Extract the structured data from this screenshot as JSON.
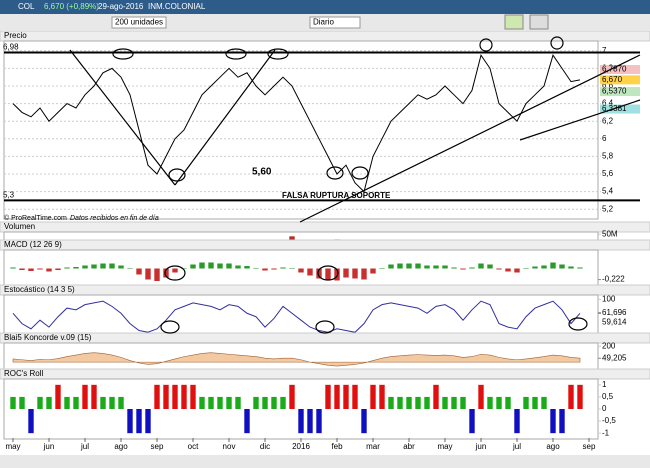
{
  "toolbar": {
    "symbol": "COL",
    "quote": "6,670 (+0,89%)",
    "date": "29-ago-2016",
    "name": "INM.COLONIAL",
    "units": "200 unidades",
    "period": "Diario"
  },
  "chart_data": [
    {
      "type": "line",
      "title": "Precio",
      "color": "#000000",
      "values": [
        6.4,
        6.3,
        6.25,
        6.35,
        6.2,
        6.3,
        6.4,
        6.35,
        6.5,
        6.6,
        6.75,
        6.8,
        6.7,
        6.5,
        6.1,
        5.7,
        5.6,
        5.8,
        6.0,
        6.1,
        6.3,
        6.5,
        6.6,
        6.7,
        6.8,
        6.7,
        6.75,
        6.6,
        6.5,
        6.6,
        6.7,
        6.6,
        6.4,
        6.2,
        6.0,
        5.8,
        5.6,
        5.7,
        5.5,
        5.4,
        5.8,
        6.0,
        6.2,
        6.3,
        6.4,
        6.5,
        6.45,
        6.5,
        6.6,
        6.5,
        6.4,
        6.55,
        6.95,
        6.8,
        6.4,
        6.3,
        6.2,
        6.4,
        6.5,
        6.6,
        6.95,
        6.8,
        6.65,
        6.67
      ],
      "ylim": [
        5.1,
        7.1
      ],
      "yticks": [
        7,
        {
          "value": 6.8,
          "label": "6,8"
        },
        {
          "value": 6.6,
          "label": "6,6"
        },
        {
          "value": 6.4,
          "label": "6,4"
        },
        {
          "value": 6.2,
          "label": "6,2"
        },
        6,
        {
          "value": 5.8,
          "label": "5,8"
        },
        {
          "value": 5.6,
          "label": "5,6"
        },
        {
          "value": 5.4,
          "label": "5,4"
        },
        {
          "value": 5.2,
          "label": "5,2"
        }
      ],
      "hlines": [
        {
          "value": 6.98,
          "label": "6,98"
        },
        {
          "value": 5.3,
          "label": "5,3"
        }
      ],
      "price_labels": [
        {
          "value": 6.787,
          "label": "6,7870",
          "color": "#f4c0c0"
        },
        {
          "value": 6.67,
          "label": "6,670",
          "color": "#ffd24a"
        },
        {
          "value": 6.537,
          "label": "6,5370",
          "color": "#bfe6bf"
        },
        {
          "value": 6.3381,
          "label": "6,3381",
          "color": "#9fe0e0"
        }
      ],
      "annotations": [
        "5,60",
        "FALSA RUPTURA SOPORTE",
        "© ProRealTime.com",
        "Datos recibidos en fin de día"
      ],
      "grid": true
    },
    {
      "type": "bar",
      "title": "Volumen",
      "color": "#b03030",
      "values": [
        5,
        4,
        4,
        6,
        5,
        4,
        6,
        7,
        8,
        6,
        5,
        6,
        9,
        10,
        8,
        7,
        7,
        6,
        6,
        5,
        5,
        6,
        5,
        5,
        5,
        4,
        6,
        5,
        6,
        7,
        5,
        35,
        8,
        7,
        9,
        10,
        12,
        9,
        8,
        7,
        6,
        6,
        5,
        5,
        6,
        5,
        7,
        8,
        9,
        7,
        6,
        6,
        7,
        6,
        6,
        5,
        5,
        6,
        7,
        8,
        6,
        5,
        5,
        4
      ],
      "ylim": [
        0,
        60
      ],
      "yticks": [
        {
          "value": 50,
          "label": "50M"
        }
      ]
    },
    {
      "type": "bar",
      "title": "MACD (12 26 9)",
      "color": "#2a9a2a",
      "neg_color": "#c83030",
      "values": [
        0.02,
        -0.03,
        -0.05,
        -0.02,
        -0.06,
        -0.03,
        0.02,
        0.03,
        0.06,
        0.08,
        0.1,
        0.1,
        0.06,
        0.0,
        -0.12,
        -0.22,
        -0.25,
        -0.18,
        -0.08,
        0.0,
        0.08,
        0.12,
        0.12,
        0.1,
        0.1,
        0.06,
        0.05,
        0.0,
        -0.04,
        -0.02,
        0.02,
        0.0,
        -0.08,
        -0.14,
        -0.2,
        -0.22,
        -0.24,
        -0.18,
        -0.2,
        -0.22,
        -0.1,
        0.0,
        0.08,
        0.1,
        0.1,
        0.1,
        0.06,
        0.06,
        0.06,
        0.02,
        -0.02,
        0.02,
        0.1,
        0.08,
        -0.02,
        -0.06,
        -0.08,
        0.0,
        0.04,
        0.06,
        0.12,
        0.08,
        0.04,
        0.02
      ],
      "ylim": [
        -0.35,
        0.35
      ],
      "yticks": [],
      "level_labels": [
        {
          "value": -0.222,
          "label": "-0,222"
        }
      ]
    },
    {
      "type": "line",
      "title": "Estocástico (14 3 5)",
      "color": "#3030a0",
      "values": [
        60,
        30,
        15,
        40,
        20,
        50,
        75,
        70,
        85,
        90,
        95,
        80,
        60,
        30,
        10,
        5,
        15,
        40,
        70,
        80,
        90,
        85,
        80,
        70,
        85,
        80,
        60,
        50,
        20,
        45,
        80,
        60,
        40,
        20,
        10,
        5,
        15,
        10,
        5,
        30,
        70,
        85,
        90,
        85,
        80,
        75,
        60,
        80,
        85,
        70,
        40,
        70,
        95,
        85,
        30,
        20,
        15,
        50,
        75,
        85,
        95,
        70,
        30,
        60
      ],
      "ylim": [
        0,
        110
      ],
      "yticks": [
        100
      ],
      "level_labels": [
        {
          "value": 61.696,
          "label": "61,696"
        },
        {
          "value": 59.614,
          "label": "59,614"
        }
      ]
    },
    {
      "type": "area",
      "title": "Blai5 Koncorde v.09 (15)",
      "color": "#f2c9a0",
      "values": [
        40,
        30,
        20,
        35,
        30,
        45,
        70,
        90,
        110,
        120,
        110,
        90,
        60,
        20,
        -10,
        -30,
        -20,
        10,
        40,
        70,
        90,
        110,
        120,
        110,
        100,
        90,
        80,
        70,
        50,
        40,
        50,
        50,
        30,
        0,
        -20,
        -40,
        -50,
        -40,
        -30,
        -10,
        20,
        50,
        70,
        80,
        90,
        95,
        90,
        85,
        90,
        80,
        60,
        70,
        100,
        90,
        60,
        40,
        30,
        40,
        55,
        70,
        90,
        80,
        60,
        50
      ],
      "ylim": [
        -100,
        230
      ],
      "yticks": [
        200
      ],
      "level_labels": [
        {
          "value": 49.205,
          "label": "49,205"
        }
      ]
    },
    {
      "type": "bar",
      "title": "ROC's Roll",
      "color": "#1aaa1a",
      "up_color": "#e01010",
      "neg_color": "#1010c0",
      "values": [
        0.5,
        0.5,
        -1,
        0.5,
        0.5,
        1,
        0.5,
        0.5,
        1,
        1,
        0.5,
        0.5,
        0.5,
        -1,
        -1,
        -1,
        1,
        1,
        1,
        1,
        1,
        0.5,
        0.5,
        0.5,
        0.5,
        0.5,
        -1,
        0.5,
        0.5,
        0.5,
        0.5,
        1,
        -1,
        -1,
        -1,
        1,
        1,
        1,
        1,
        -1,
        1,
        1,
        0.5,
        0.5,
        0.5,
        0.5,
        0.5,
        1,
        0.5,
        0.5,
        0.5,
        -1,
        1,
        0.5,
        0.5,
        0.5,
        -1,
        0.5,
        0.5,
        0.5,
        -1,
        -1,
        1,
        1
      ],
      "ylim": [
        -1.2,
        1.2
      ],
      "yticks": [
        1,
        {
          "value": 0.5,
          "label": "0,5"
        },
        0,
        {
          "value": -0.5,
          "label": "-0,5"
        },
        -1
      ],
      "xlim": [
        -1,
        65
      ],
      "xticks": [
        {
          "value": 0,
          "label": "may"
        },
        {
          "value": 4,
          "label": "jun"
        },
        {
          "value": 8,
          "label": "jul"
        },
        {
          "value": 12,
          "label": "ago"
        },
        {
          "value": 16,
          "label": "sep"
        },
        {
          "value": 20,
          "label": "oct"
        },
        {
          "value": 24,
          "label": "nov"
        },
        {
          "value": 28,
          "label": "dic"
        },
        {
          "value": 32,
          "label": "2016"
        },
        {
          "value": 36,
          "label": "feb"
        },
        {
          "value": 40,
          "label": "mar"
        },
        {
          "value": 44,
          "label": "abr"
        },
        {
          "value": 48,
          "label": "may"
        },
        {
          "value": 52,
          "label": "jun"
        },
        {
          "value": 56,
          "label": "jul"
        },
        {
          "value": 60,
          "label": "ago"
        },
        {
          "value": 64,
          "label": "sep"
        }
      ]
    }
  ]
}
